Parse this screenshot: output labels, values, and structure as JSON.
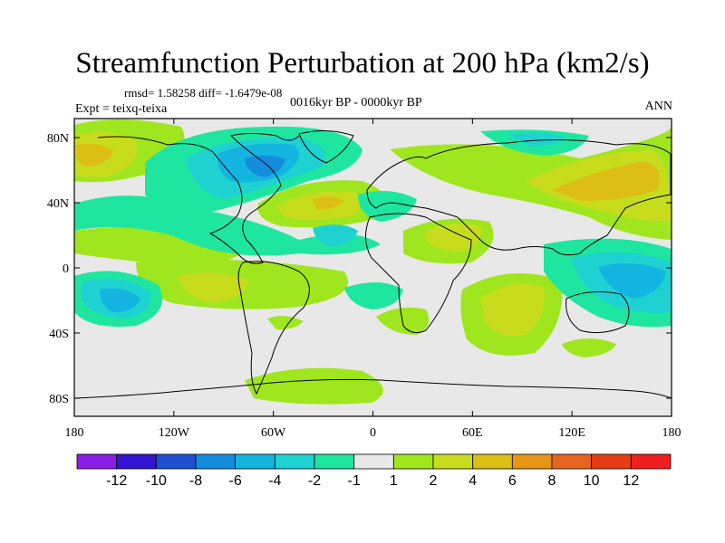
{
  "title": "Streamfunction Perturbation at 200 hPa (km2/s)",
  "stats": "rmsd= 1.58258 diff= -1.6479e-08",
  "experiment": "Expt = teixq-teixa",
  "period": "0016kyr BP - 0000kyr BP",
  "season": "ANN",
  "lat_ticks": [
    "80N",
    "40N",
    "0",
    "40S",
    "80S"
  ],
  "lon_ticks": [
    "180",
    "120W",
    "60W",
    "0",
    "60E",
    "120E",
    "180"
  ],
  "colorbar": {
    "labels": [
      "-12",
      "-10",
      "-8",
      "-6",
      "-4",
      "-2",
      "-1",
      "1",
      "2",
      "4",
      "6",
      "8",
      "10",
      "12"
    ],
    "colors": [
      "#8a1ee6",
      "#3214d2",
      "#1e50d2",
      "#148cdc",
      "#14b4e1",
      "#1ed2d2",
      "#1ee6a0",
      "#e8e8e8",
      "#a0e61e",
      "#c8dc1e",
      "#dcbe14",
      "#e69614",
      "#e6641e",
      "#e63c14",
      "#f01e1e"
    ]
  }
}
